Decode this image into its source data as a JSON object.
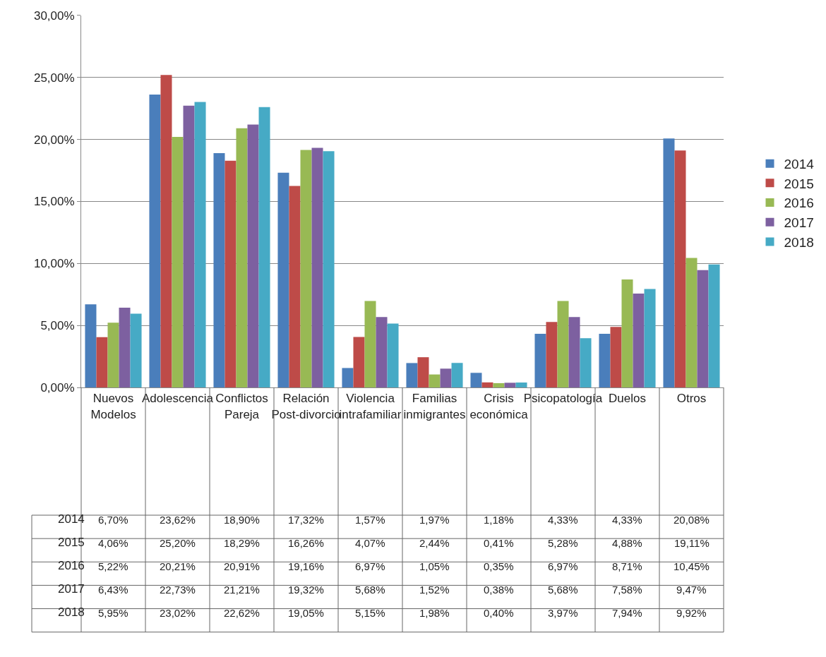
{
  "chart_data": {
    "type": "bar",
    "categories": [
      "Nuevos Modelos",
      "Adolescencia",
      "Conflictos Pareja",
      "Relación Post-divorcio",
      "Violencia intrafamiliar",
      "Familias inmigrantes",
      "Crisis económica",
      "Psicopatología",
      "Duelos",
      "Otros"
    ],
    "series": [
      {
        "name": "2014",
        "color": "#4a7ebb",
        "values": [
          6.7,
          23.62,
          18.9,
          17.32,
          1.57,
          1.97,
          1.18,
          4.33,
          4.33,
          20.08
        ],
        "value_labels": [
          "6,70%",
          "23,62%",
          "18,90%",
          "17,32%",
          "1,57%",
          "1,97%",
          "1,18%",
          "4,33%",
          "4,33%",
          "20,08%"
        ]
      },
      {
        "name": "2015",
        "color": "#be4b48",
        "values": [
          4.06,
          25.2,
          18.29,
          16.26,
          4.07,
          2.44,
          0.41,
          5.28,
          4.88,
          19.11
        ],
        "value_labels": [
          "4,06%",
          "25,20%",
          "18,29%",
          "16,26%",
          "4,07%",
          "2,44%",
          "0,41%",
          "5,28%",
          "4,88%",
          "19,11%"
        ]
      },
      {
        "name": "2016",
        "color": "#98b954",
        "values": [
          5.22,
          20.21,
          20.91,
          19.16,
          6.97,
          1.05,
          0.35,
          6.97,
          8.71,
          10.45
        ],
        "value_labels": [
          "5,22%",
          "20,21%",
          "20,91%",
          "19,16%",
          "6,97%",
          "1,05%",
          "0,35%",
          "6,97%",
          "8,71%",
          "10,45%"
        ]
      },
      {
        "name": "2017",
        "color": "#7d60a0",
        "values": [
          6.43,
          22.73,
          21.21,
          19.32,
          5.68,
          1.52,
          0.38,
          5.68,
          7.58,
          9.47
        ],
        "value_labels": [
          "6,43%",
          "22,73%",
          "21,21%",
          "19,32%",
          "5,68%",
          "1,52%",
          "0,38%",
          "5,68%",
          "7,58%",
          "9,47%"
        ]
      },
      {
        "name": "2018",
        "color": "#46aac5",
        "values": [
          5.95,
          23.02,
          22.62,
          19.05,
          5.15,
          1.98,
          0.4,
          3.97,
          7.94,
          9.92
        ],
        "value_labels": [
          "5,95%",
          "23,02%",
          "22,62%",
          "19,05%",
          "5,15%",
          "1,98%",
          "0,40%",
          "3,97%",
          "7,94%",
          "9,92%"
        ]
      }
    ],
    "ylim": [
      0,
      30
    ],
    "yticks": [
      {
        "value": 0,
        "label": "0,00%"
      },
      {
        "value": 5,
        "label": "5,00%"
      },
      {
        "value": 10,
        "label": "10,00%"
      },
      {
        "value": 15,
        "label": "15,00%"
      },
      {
        "value": 20,
        "label": "20,00%"
      },
      {
        "value": 25,
        "label": "25,00%"
      },
      {
        "value": 30,
        "label": "30,00%"
      }
    ],
    "grid": "y",
    "legend": "right"
  }
}
